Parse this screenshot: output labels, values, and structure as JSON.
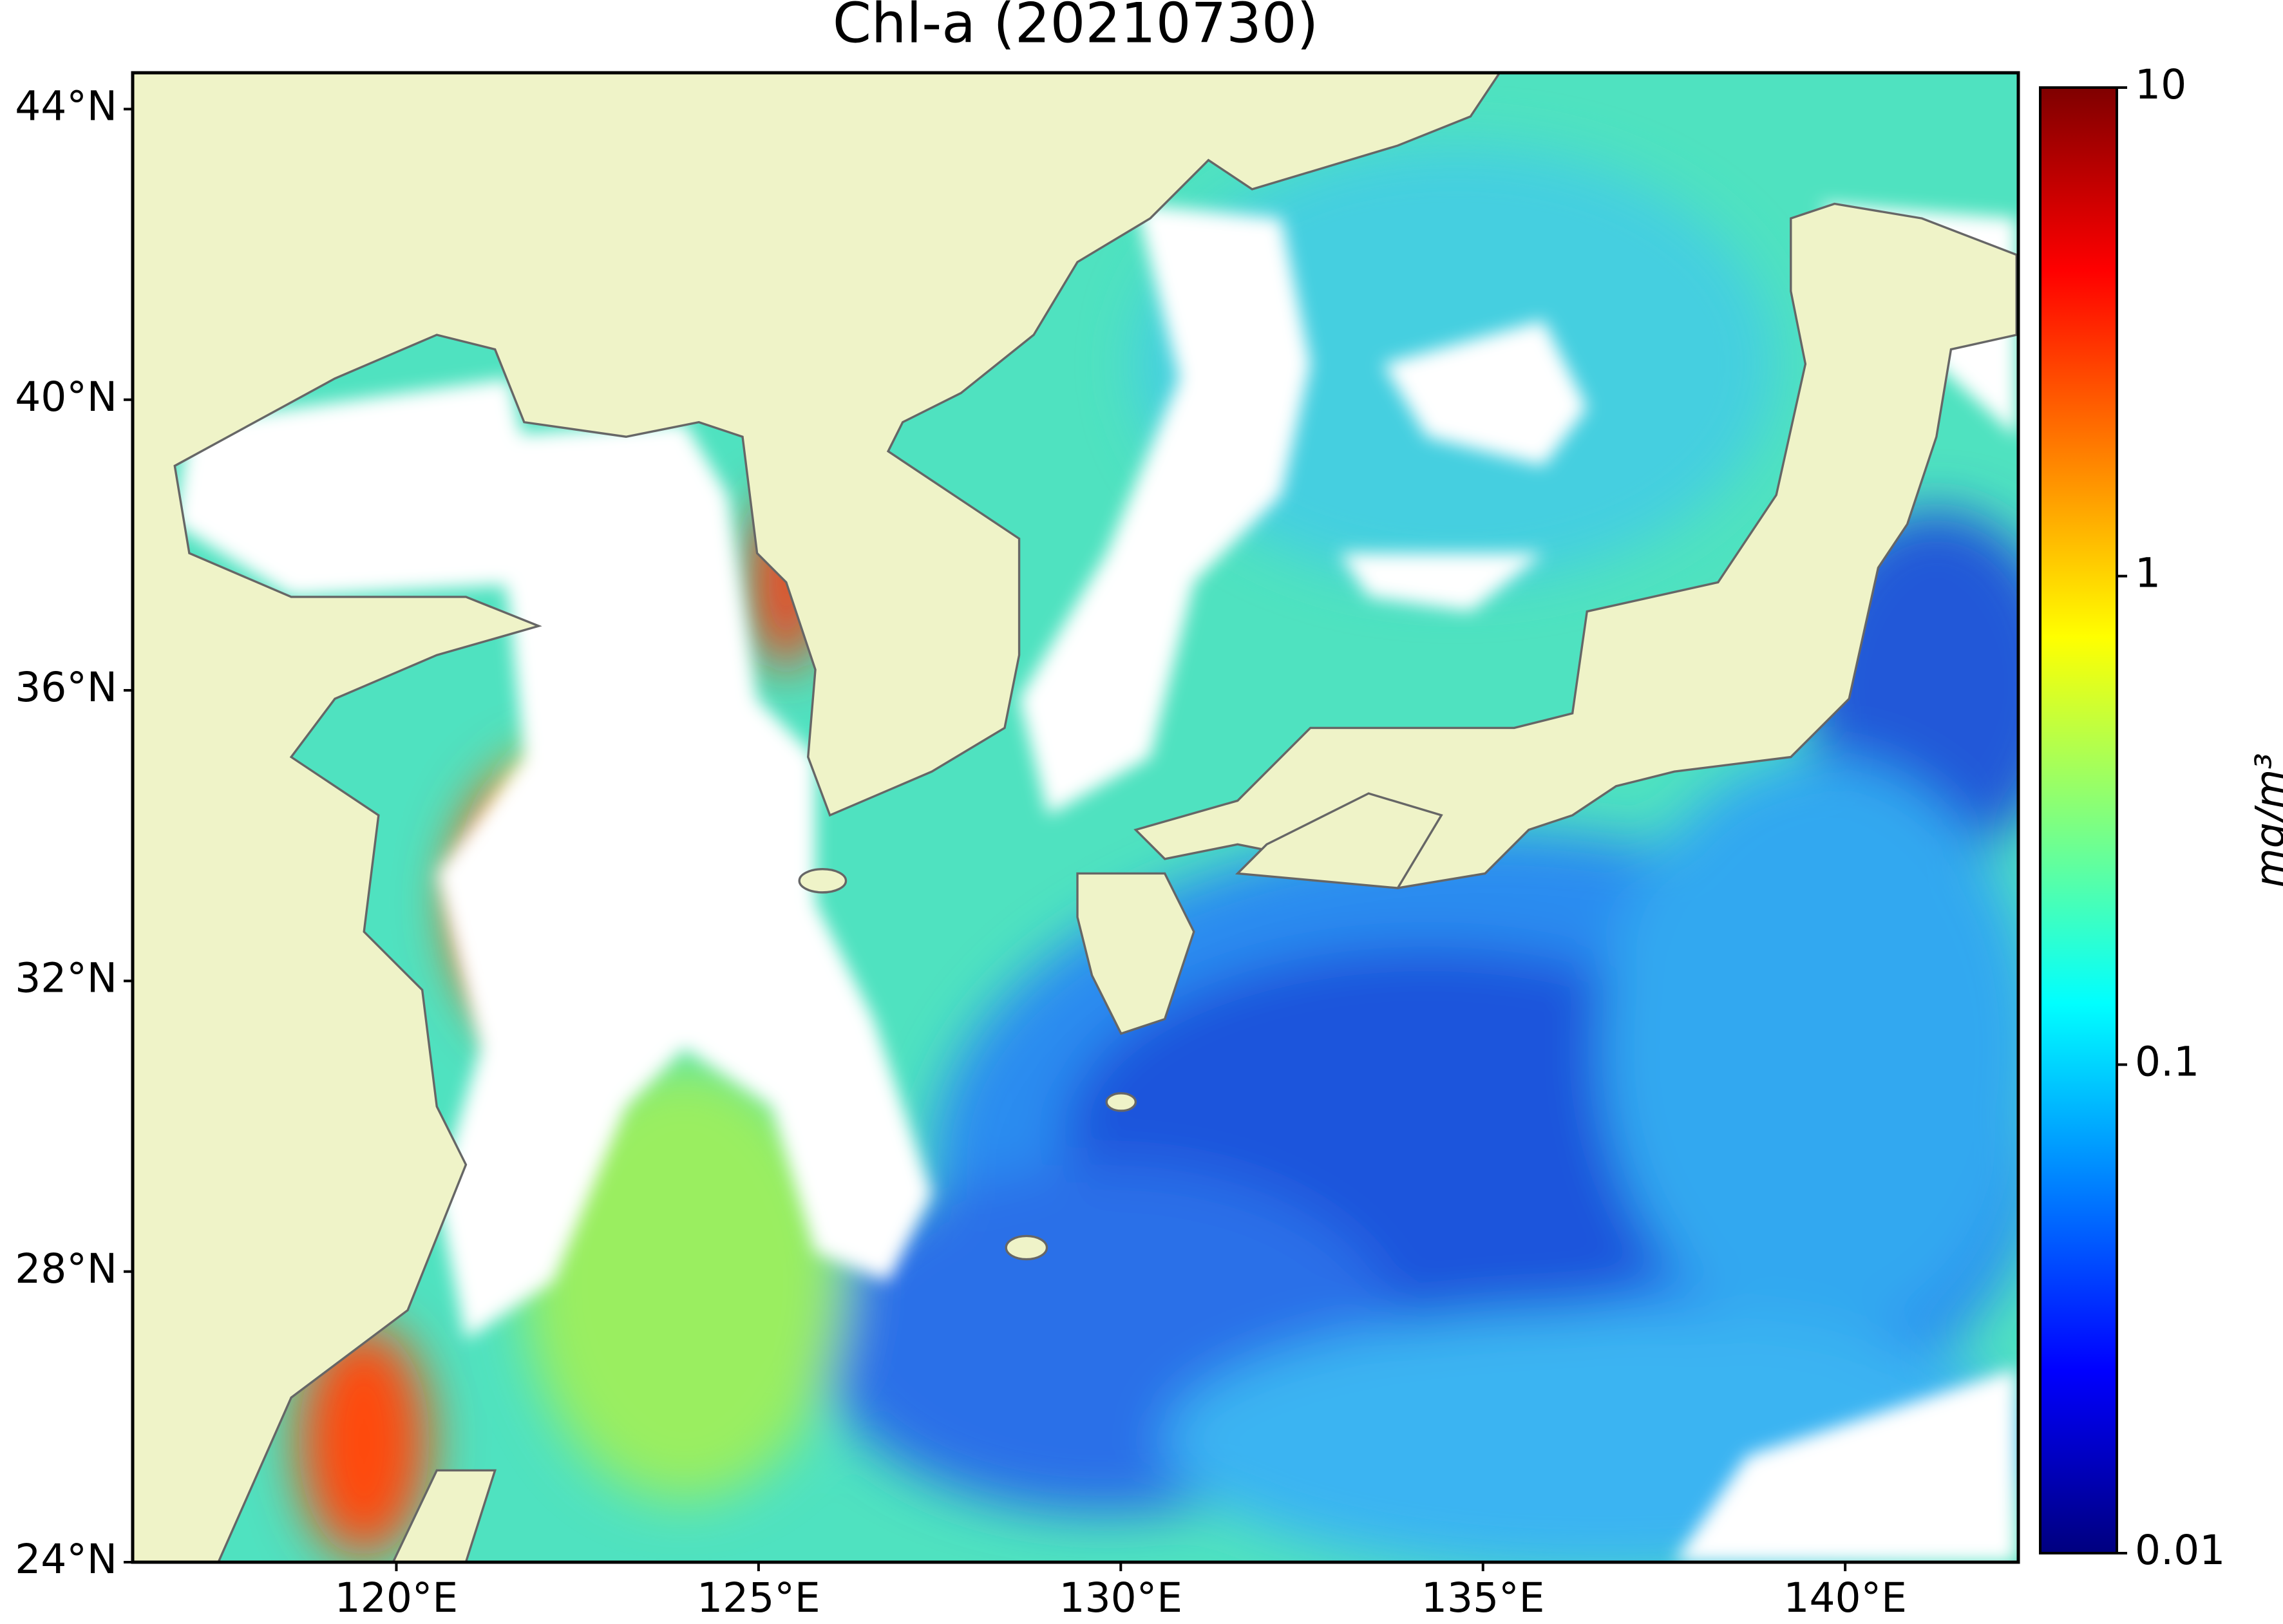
{
  "chart_data": {
    "type": "map",
    "title": "Chl-a (20210730)",
    "xlim": [
      116.36,
      142.39
    ],
    "ylim": [
      24,
      44.5
    ],
    "xticks": [
      {
        "value": 120,
        "label": "120°E"
      },
      {
        "value": 125,
        "label": "125°E"
      },
      {
        "value": 130,
        "label": "130°E"
      },
      {
        "value": 135,
        "label": "135°E"
      },
      {
        "value": 140,
        "label": "140°E"
      }
    ],
    "yticks": [
      {
        "value": 24,
        "label": "24°N"
      },
      {
        "value": 28,
        "label": "28°N"
      },
      {
        "value": 32,
        "label": "32°N"
      },
      {
        "value": 36,
        "label": "36°N"
      },
      {
        "value": 40,
        "label": "40°N"
      },
      {
        "value": 44,
        "label": "44°N"
      }
    ],
    "colorbar": {
      "label": "mg/m³",
      "log": true,
      "lim": [
        0.01,
        10
      ],
      "ticks": [
        0.01,
        0.1,
        1,
        10
      ]
    }
  }
}
